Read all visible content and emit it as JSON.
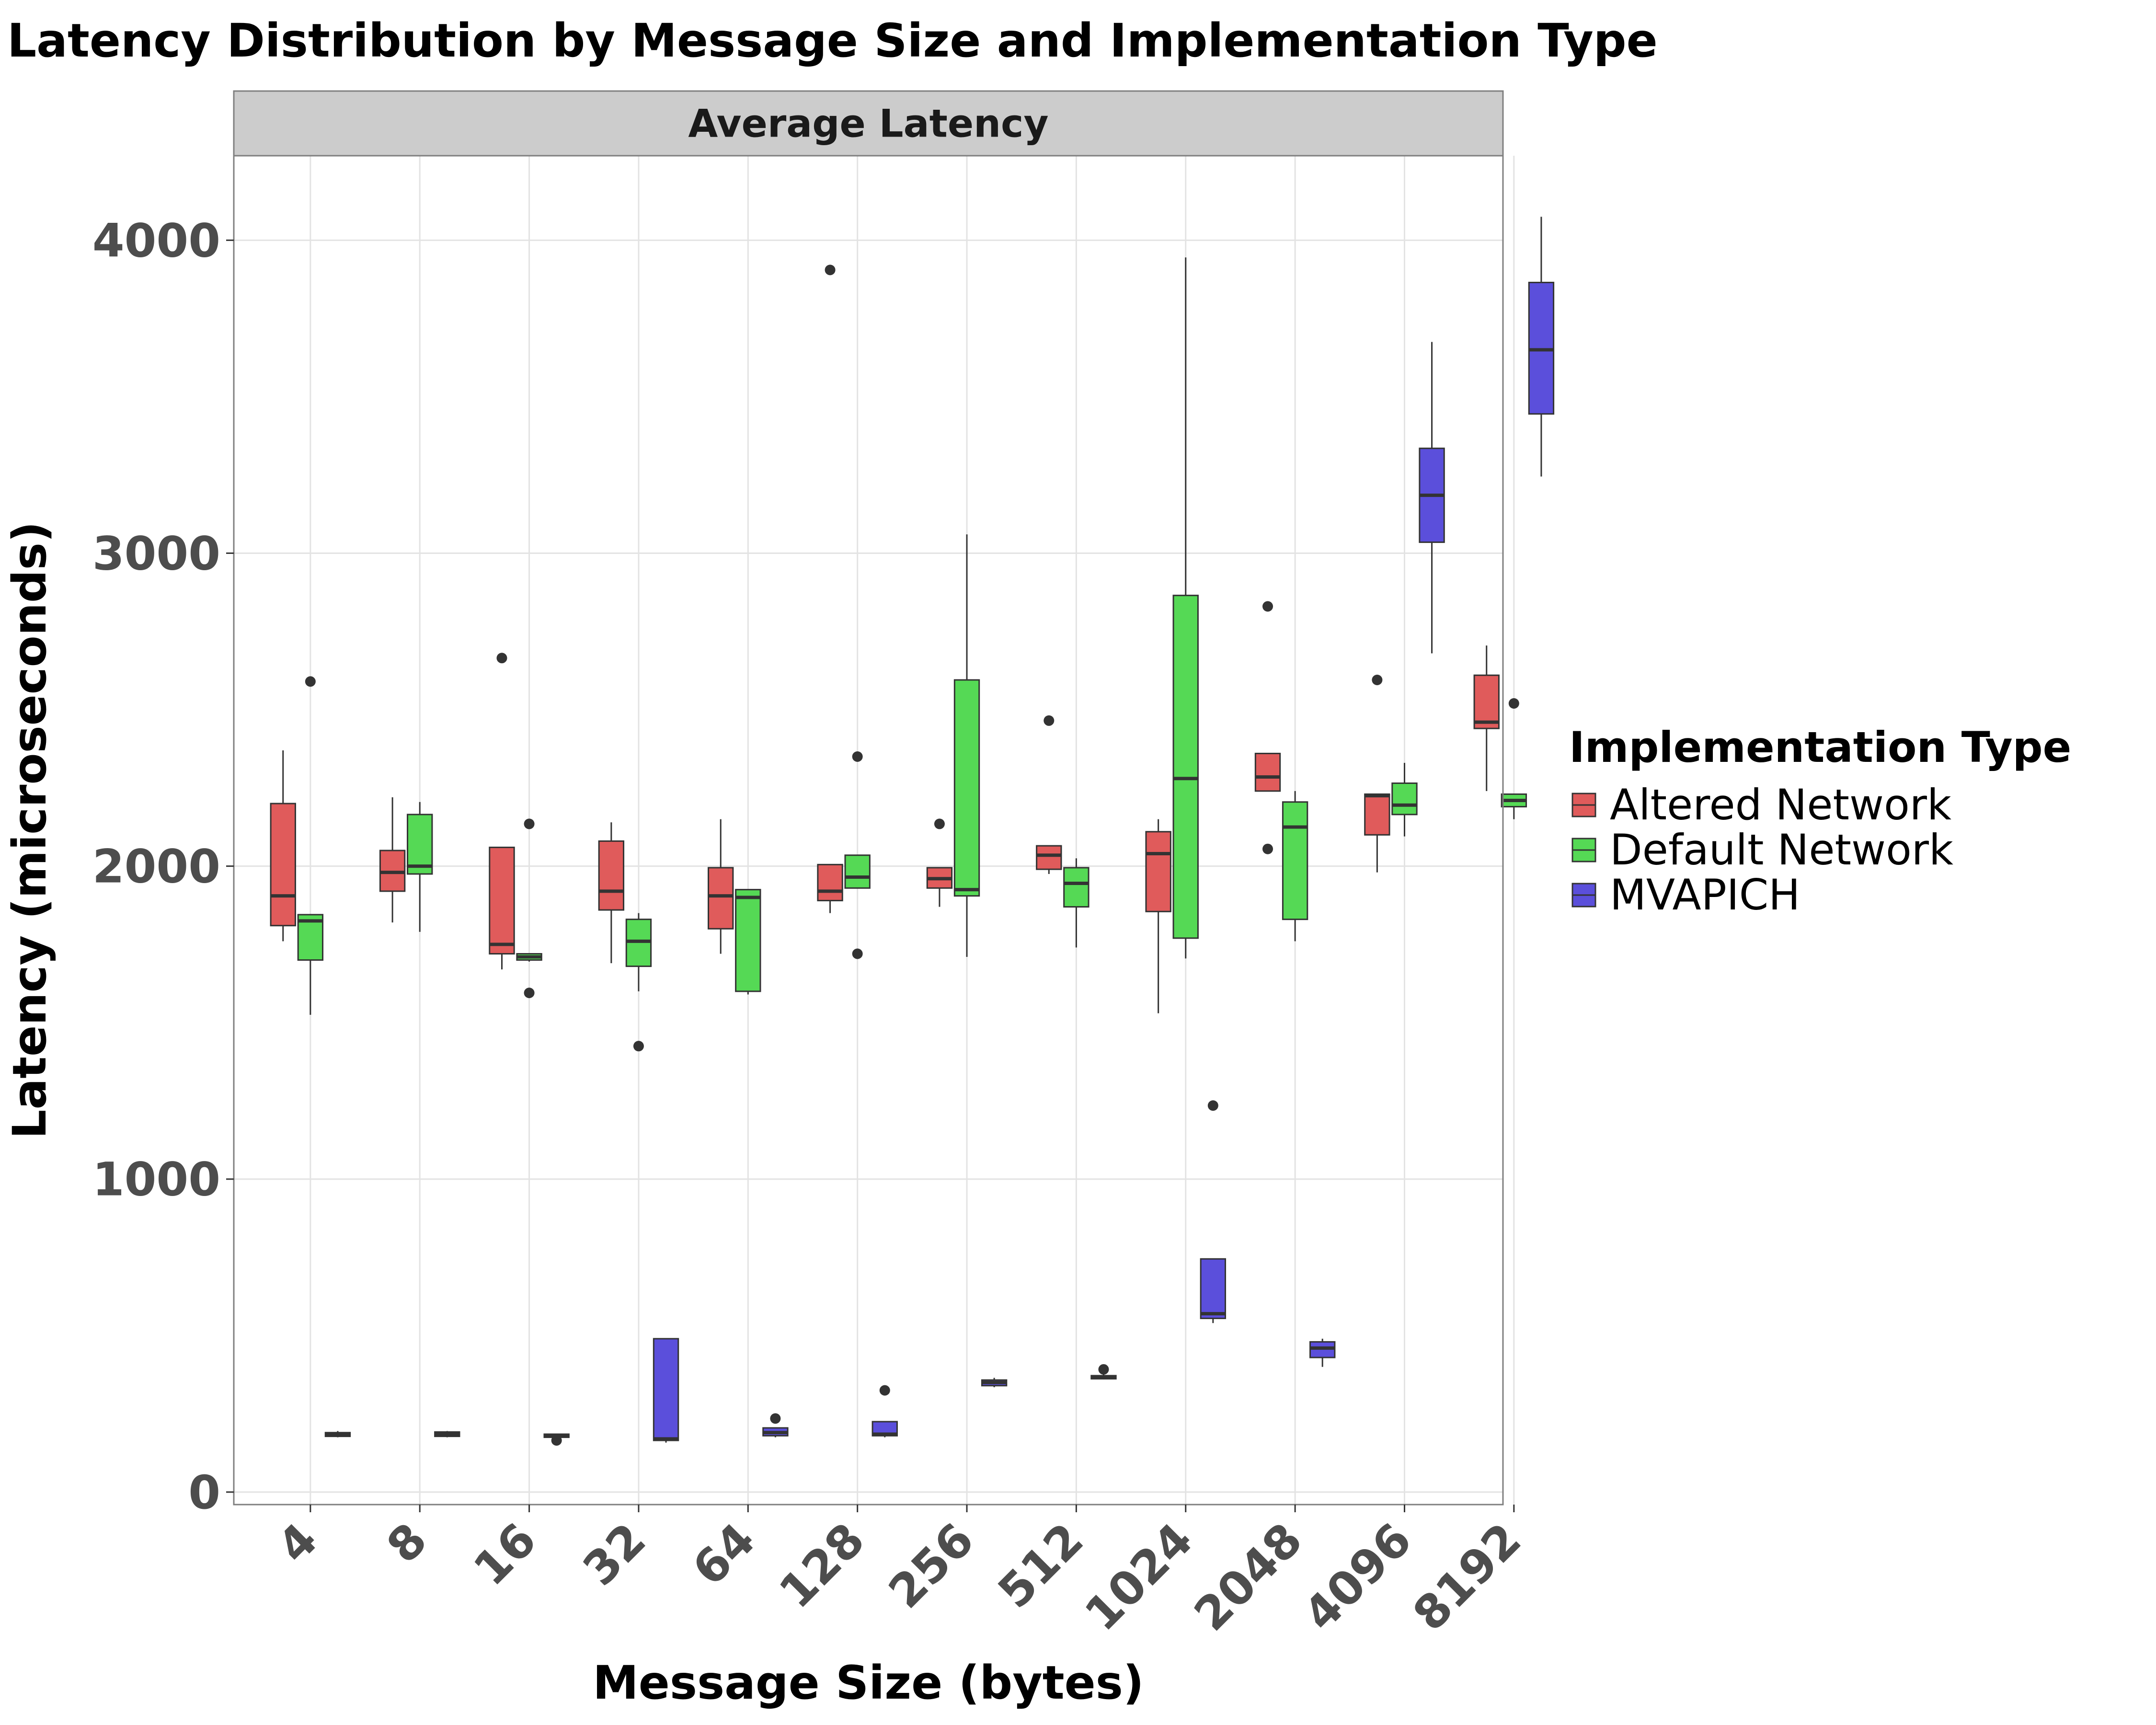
{
  "chart_data": {
    "type": "boxplot",
    "title": "Latency Distribution by Message Size and Implementation Type",
    "facet_label": "Average Latency",
    "xlabel": "Message Size (bytes)",
    "ylabel": "Latency (microseconds)",
    "categories": [
      "4",
      "8",
      "16",
      "32",
      "64",
      "128",
      "256",
      "512",
      "1024",
      "2048",
      "4096",
      "8192"
    ],
    "ylim": [
      -40,
      4270
    ],
    "yticks": [
      0,
      1000,
      2000,
      3000,
      4000
    ],
    "grid": true,
    "legend": {
      "title": "Implementation Type",
      "placement": "right",
      "entries": [
        "Altered Network",
        "Default Network",
        "MVAPICH"
      ]
    },
    "series": [
      {
        "name": "Altered Network",
        "color": "#E05B5B",
        "boxes": [
          {
            "min": 1760,
            "q1": 1810,
            "median": 1905,
            "q3": 2200,
            "max": 2370,
            "outliers": []
          },
          {
            "min": 1820,
            "q1": 1920,
            "median": 1980,
            "q3": 2050,
            "max": 2220,
            "outliers": []
          },
          {
            "min": 1670,
            "q1": 1720,
            "median": 1750,
            "q3": 2060,
            "max": 2060,
            "outliers": [
              2665
            ]
          },
          {
            "min": 1690,
            "q1": 1860,
            "median": 1920,
            "q3": 2080,
            "max": 2140,
            "outliers": []
          },
          {
            "min": 1720,
            "q1": 1800,
            "median": 1905,
            "q3": 1995,
            "max": 2150,
            "outliers": []
          },
          {
            "min": 1850,
            "q1": 1890,
            "median": 1920,
            "q3": 2005,
            "max": 2005,
            "outliers": [
              3905
            ]
          },
          {
            "min": 1870,
            "q1": 1930,
            "median": 1960,
            "q3": 1995,
            "max": 1995,
            "outliers": [
              2135
            ]
          },
          {
            "min": 1975,
            "q1": 1990,
            "median": 2035,
            "q3": 2065,
            "max": 2065,
            "outliers": [
              2465
            ]
          },
          {
            "min": 1530,
            "q1": 1855,
            "median": 2040,
            "q3": 2110,
            "max": 2150,
            "outliers": []
          },
          {
            "min": 2240,
            "q1": 2240,
            "median": 2285,
            "q3": 2360,
            "max": 2360,
            "outliers": [
              2830,
              2055
            ]
          },
          {
            "min": 1980,
            "q1": 2100,
            "median": 2225,
            "q3": 2230,
            "max": 2230,
            "outliers": [
              2595
            ]
          },
          {
            "min": 2240,
            "q1": 2440,
            "median": 2460,
            "q3": 2610,
            "max": 2705,
            "outliers": []
          }
        ]
      },
      {
        "name": "Default Network",
        "color": "#55D955",
        "boxes": [
          {
            "min": 1525,
            "q1": 1700,
            "median": 1825,
            "q3": 1845,
            "max": 1845,
            "outliers": [
              2590
            ]
          },
          {
            "min": 1790,
            "q1": 1975,
            "median": 2000,
            "q3": 2165,
            "max": 2205,
            "outliers": []
          },
          {
            "min": 1695,
            "q1": 1700,
            "median": 1710,
            "q3": 1720,
            "max": 1720,
            "outliers": [
              2135,
              1595
            ]
          },
          {
            "min": 1600,
            "q1": 1680,
            "median": 1760,
            "q3": 1830,
            "max": 1850,
            "outliers": [
              1425
            ]
          },
          {
            "min": 1590,
            "q1": 1600,
            "median": 1900,
            "q3": 1925,
            "max": 1925,
            "outliers": []
          },
          {
            "min": 1930,
            "q1": 1930,
            "median": 1965,
            "q3": 2035,
            "max": 2035,
            "outliers": [
              2350,
              1720
            ]
          },
          {
            "min": 1710,
            "q1": 1905,
            "median": 1925,
            "q3": 2595,
            "max": 3060,
            "outliers": []
          },
          {
            "min": 1740,
            "q1": 1870,
            "median": 1945,
            "q3": 1995,
            "max": 2025,
            "outliers": []
          },
          {
            "min": 1705,
            "q1": 1770,
            "median": 2280,
            "q3": 2865,
            "max": 3945,
            "outliers": []
          },
          {
            "min": 1760,
            "q1": 1830,
            "median": 2125,
            "q3": 2205,
            "max": 2240,
            "outliers": []
          },
          {
            "min": 2095,
            "q1": 2165,
            "median": 2195,
            "q3": 2265,
            "max": 2330,
            "outliers": []
          },
          {
            "min": 2150,
            "q1": 2190,
            "median": 2210,
            "q3": 2230,
            "max": 2230,
            "outliers": [
              2520
            ]
          }
        ]
      },
      {
        "name": "MVAPICH",
        "color": "#5B4FDB",
        "boxes": [
          {
            "min": 175,
            "q1": 178,
            "median": 185,
            "q3": 190,
            "max": 195,
            "outliers": []
          },
          {
            "min": 175,
            "q1": 178,
            "median": 185,
            "q3": 192,
            "max": 195,
            "outliers": []
          },
          {
            "min": 172,
            "q1": 175,
            "median": 180,
            "q3": 185,
            "max": 185,
            "outliers": [
              165
            ]
          },
          {
            "min": 158,
            "q1": 165,
            "median": 170,
            "q3": 490,
            "max": 490,
            "outliers": []
          },
          {
            "min": 175,
            "q1": 180,
            "median": 190,
            "q3": 205,
            "max": 205,
            "outliers": [
              235
            ]
          },
          {
            "min": 175,
            "q1": 180,
            "median": 185,
            "q3": 225,
            "max": 225,
            "outliers": [
              325
            ]
          },
          {
            "min": 335,
            "q1": 340,
            "median": 350,
            "q3": 358,
            "max": 365,
            "outliers": []
          },
          {
            "min": 360,
            "q1": 362,
            "median": 368,
            "q3": 372,
            "max": 378,
            "outliers": [
              392
            ]
          },
          {
            "min": 540,
            "q1": 555,
            "median": 570,
            "q3": 745,
            "max": 745,
            "outliers": [
              1235
            ]
          },
          {
            "min": 400,
            "q1": 430,
            "median": 460,
            "q3": 480,
            "max": 490,
            "outliers": []
          },
          {
            "min": 2680,
            "q1": 3035,
            "median": 3185,
            "q3": 3335,
            "max": 3675,
            "outliers": []
          },
          {
            "min": 3245,
            "q1": 3445,
            "median": 3650,
            "q3": 3865,
            "max": 4075,
            "outliers": []
          }
        ]
      }
    ]
  }
}
